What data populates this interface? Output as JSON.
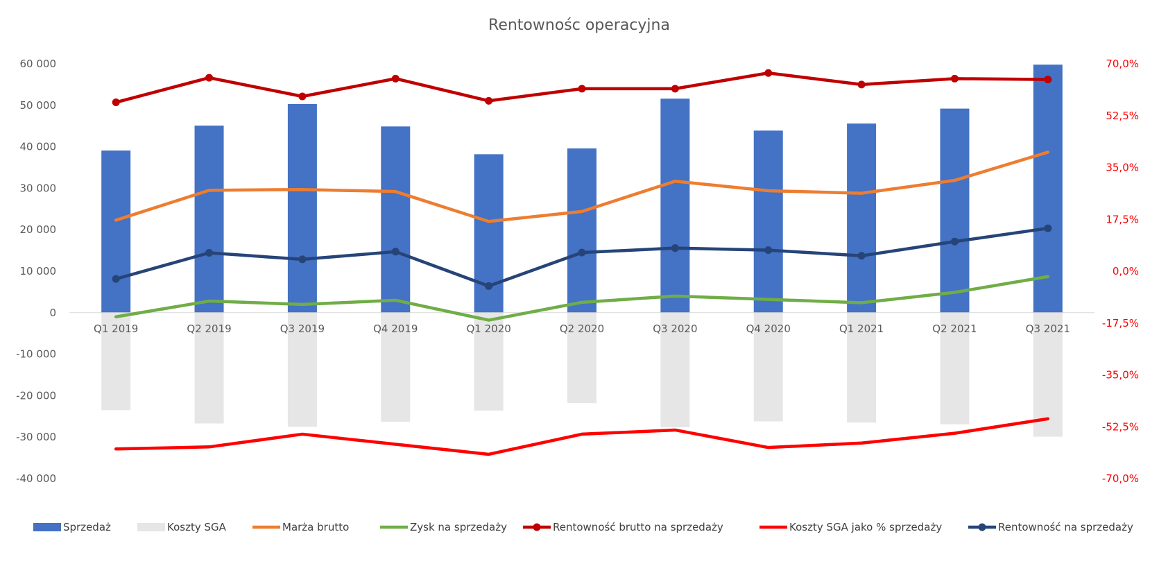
{
  "chart_data": {
    "type": "bar",
    "title": "Rentownośc operacyjna",
    "categories": [
      "Q1 2019",
      "Q2 2019",
      "Q3 2019",
      "Q4 2019",
      "Q1 2020",
      "Q2 2020",
      "Q3 2020",
      "Q4 2020",
      "Q1 2021",
      "Q2 2021",
      "Q3 2021"
    ],
    "left_axis": {
      "ylim": [
        -40000,
        60000
      ],
      "ticks": [
        60000,
        50000,
        40000,
        30000,
        20000,
        10000,
        0,
        -10000,
        -20000,
        -30000,
        -40000
      ],
      "tick_labels": [
        "60 000",
        "50 000",
        "40 000",
        "30 000",
        "20 000",
        "10 000",
        "0",
        "-10 000",
        "-20 000",
        "-30 000",
        "-40 000"
      ]
    },
    "right_axis": {
      "ylim": [
        -70,
        70
      ],
      "unit": "%",
      "ticks": [
        70,
        52.5,
        35,
        17.5,
        0,
        -17.5,
        -35,
        -52.5,
        -70
      ],
      "tick_labels": [
        "70,0%",
        "52,5%",
        "35,0%",
        "17,5%",
        "0,0%",
        "-17,5%",
        "-35,0%",
        "-52,5%",
        "-70,0%"
      ],
      "color": "#ff0000"
    },
    "grid": false,
    "legend_position": "bottom",
    "series": [
      {
        "name": "Sprzedaż",
        "type": "bar",
        "axis": "left",
        "color": "#4472c4",
        "values": [
          39100,
          45100,
          50300,
          44900,
          38200,
          39600,
          51600,
          43900,
          45600,
          49200,
          59800
        ]
      },
      {
        "name": "Koszty SGA",
        "type": "bar",
        "axis": "left",
        "color": "#e7e6e6",
        "values": [
          -23500,
          -26700,
          -27500,
          -26300,
          -23600,
          -21800,
          -27600,
          -26200,
          -26500,
          -26900,
          -29900
        ]
      },
      {
        "name": "Marża brutto",
        "type": "line",
        "axis": "left",
        "color": "#ed7d31",
        "marker": false,
        "values": [
          22300,
          29500,
          29700,
          29200,
          22000,
          24400,
          31700,
          29400,
          28800,
          31900,
          38700
        ]
      },
      {
        "name": "Zysk na sprzedaży",
        "type": "line",
        "axis": "left",
        "color": "#70ad47",
        "marker": false,
        "values": [
          -1000,
          2800,
          2000,
          3000,
          -1800,
          2500,
          4000,
          3200,
          2400,
          4900,
          8700
        ]
      },
      {
        "name": "Rentowność brutto na sprzedaży",
        "type": "line",
        "axis": "right",
        "color": "#c00000",
        "marker": true,
        "values": [
          57.0,
          65.3,
          59.0,
          65.0,
          57.5,
          61.6,
          61.6,
          66.9,
          63.0,
          65.0,
          64.7
        ]
      },
      {
        "name": "Koszty SGA jako % sprzedaży",
        "type": "line",
        "axis": "right",
        "color": "#ff0000",
        "marker": false,
        "values": [
          -60.0,
          -59.3,
          -55.0,
          -58.4,
          -61.8,
          -55.0,
          -53.6,
          -59.5,
          -58.0,
          -54.7,
          -49.8
        ]
      },
      {
        "name": "Rentowność na sprzedaży",
        "type": "line",
        "axis": "right",
        "color": "#264478",
        "marker": true,
        "values": [
          -2.6,
          6.2,
          4.0,
          6.6,
          -5.0,
          6.3,
          7.8,
          7.1,
          5.2,
          10.0,
          14.5
        ]
      }
    ]
  }
}
